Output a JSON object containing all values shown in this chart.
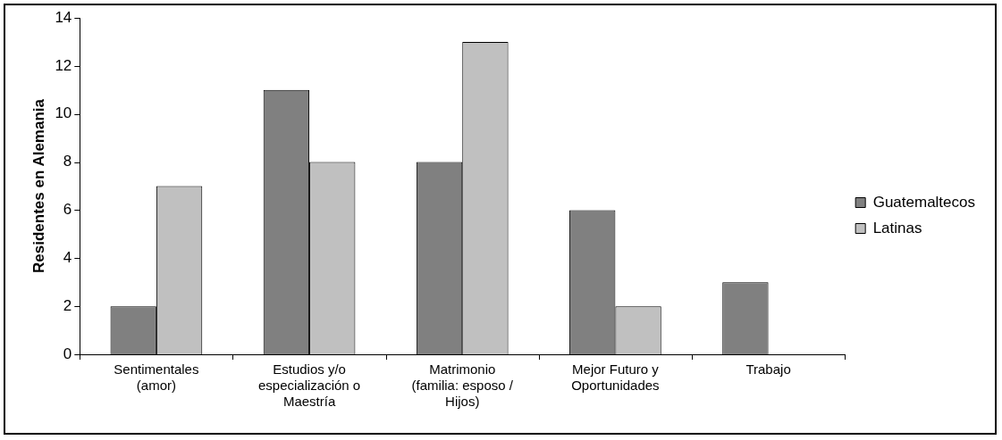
{
  "chart_data": {
    "type": "bar",
    "ylabel": "Residentes en Alemania",
    "categories": [
      "Sentimentales (amor)",
      "Estudios y/o especialización o Maestría",
      "Matrimonio (familia: esposo / Hijos)",
      "Mejor Futuro y Oportunidades",
      "Trabajo"
    ],
    "series": [
      {
        "name": "Guatemaltecos",
        "color": "#808080",
        "values": [
          2,
          11,
          8,
          6,
          3
        ]
      },
      {
        "name": "Latinas",
        "color": "#c0c0c0",
        "values": [
          7,
          8,
          13,
          2,
          null
        ]
      }
    ],
    "ylim": [
      0,
      14
    ],
    "yticks": [
      0,
      2,
      4,
      6,
      8,
      10,
      12,
      14
    ],
    "grid": false,
    "legend": "right"
  }
}
